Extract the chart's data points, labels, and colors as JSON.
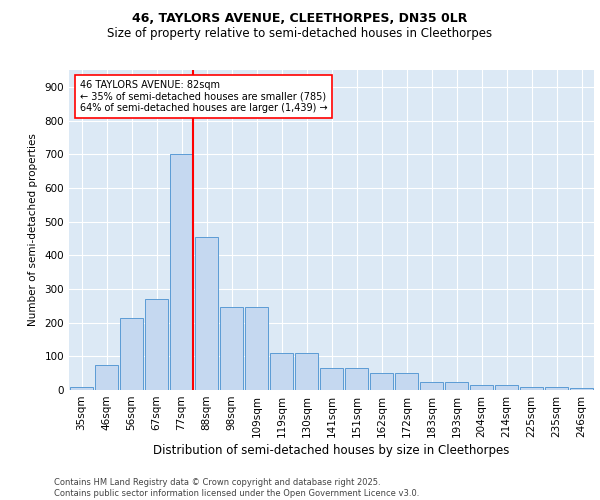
{
  "title1": "46, TAYLORS AVENUE, CLEETHORPES, DN35 0LR",
  "title2": "Size of property relative to semi-detached houses in Cleethorpes",
  "xlabel": "Distribution of semi-detached houses by size in Cleethorpes",
  "ylabel": "Number of semi-detached properties",
  "categories": [
    "35sqm",
    "46sqm",
    "56sqm",
    "67sqm",
    "77sqm",
    "88sqm",
    "98sqm",
    "109sqm",
    "119sqm",
    "130sqm",
    "141sqm",
    "151sqm",
    "162sqm",
    "172sqm",
    "183sqm",
    "193sqm",
    "204sqm",
    "214sqm",
    "225sqm",
    "235sqm",
    "246sqm"
  ],
  "values": [
    10,
    75,
    215,
    270,
    700,
    455,
    245,
    245,
    110,
    110,
    65,
    65,
    50,
    50,
    25,
    25,
    15,
    15,
    10,
    10,
    5
  ],
  "bar_color": "#c5d8f0",
  "bar_edge_color": "#5b9bd5",
  "annotation_line1": "46 TAYLORS AVENUE: 82sqm",
  "annotation_line2": "← 35% of semi-detached houses are smaller (785)",
  "annotation_line3": "64% of semi-detached houses are larger (1,439) →",
  "footer1": "Contains HM Land Registry data © Crown copyright and database right 2025.",
  "footer2": "Contains public sector information licensed under the Open Government Licence v3.0.",
  "bg_color": "#dce9f5",
  "ylim": [
    0,
    950
  ],
  "yticks": [
    0,
    100,
    200,
    300,
    400,
    500,
    600,
    700,
    800,
    900
  ],
  "red_line_x": 4.475,
  "title1_fontsize": 9,
  "title2_fontsize": 8.5,
  "xlabel_fontsize": 8.5,
  "ylabel_fontsize": 7.5,
  "tick_fontsize": 7.5,
  "annot_fontsize": 7,
  "footer_fontsize": 6
}
